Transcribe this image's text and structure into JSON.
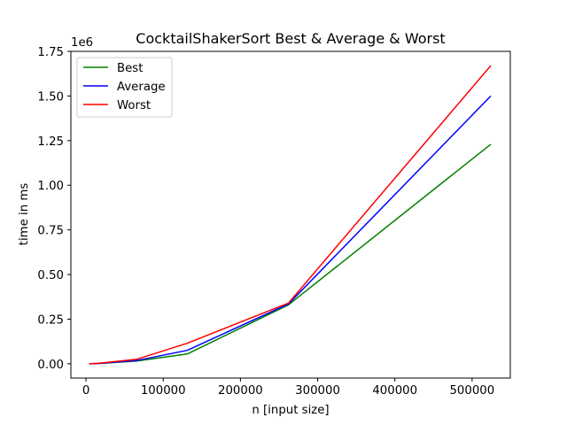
{
  "chart_data": {
    "type": "line",
    "title": "CocktailShakerSort Best & Average & Worst",
    "xlabel": "n [input size]",
    "ylabel": "time in ms",
    "y_offset_label": "1e6",
    "xlim": [
      -19600,
      549500
    ],
    "ylim": [
      -0.08,
      1.75
    ],
    "x_ticks": [
      0,
      100000,
      200000,
      300000,
      400000,
      500000
    ],
    "x_tick_labels": [
      "0",
      "100000",
      "200000",
      "300000",
      "400000",
      "500000"
    ],
    "y_ticks": [
      0.0,
      0.25,
      0.5,
      0.75,
      1.0,
      1.25,
      1.5,
      1.75
    ],
    "y_tick_labels": [
      "0.00",
      "0.25",
      "0.50",
      "0.75",
      "1.00",
      "1.25",
      "1.50",
      "1.75"
    ],
    "x": [
      4096,
      16384,
      65536,
      131072,
      262144,
      524288
    ],
    "series": [
      {
        "name": "Best",
        "color": "#008000",
        "values": [
          0.0,
          0.002,
          0.015,
          0.055,
          0.33,
          1.23
        ]
      },
      {
        "name": "Average",
        "color": "#0000ff",
        "values": [
          0.0,
          0.002,
          0.018,
          0.075,
          0.335,
          1.5
        ]
      },
      {
        "name": "Worst",
        "color": "#ff0000",
        "values": [
          0.0,
          0.003,
          0.025,
          0.115,
          0.34,
          1.67
        ]
      }
    ],
    "grid": false,
    "legend_position": "top-left"
  }
}
